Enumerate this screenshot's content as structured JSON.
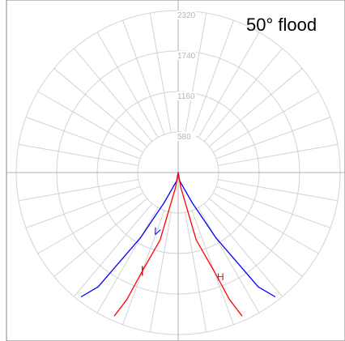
{
  "chart_data": {
    "type": "polar-line",
    "title": "50° flood",
    "rings": [
      580,
      1160,
      1740,
      2320
    ],
    "angle_step_deg": 10,
    "grid": true,
    "series": [
      {
        "name": "V",
        "color": "#0000ff",
        "points": [
          [
            0,
            0
          ],
          [
            5,
            0
          ],
          [
            10,
            120
          ],
          [
            20,
            240
          ],
          [
            25,
            480
          ],
          [
            30,
            1080
          ],
          [
            35,
            2000
          ],
          [
            38,
            2260
          ]
        ]
      },
      {
        "name": "H",
        "color": "#ff0000",
        "points": [
          [
            0,
            0
          ],
          [
            5,
            0
          ],
          [
            10,
            220
          ],
          [
            15,
            1000
          ],
          [
            20,
            1500
          ],
          [
            22,
            1960
          ],
          [
            24,
            2250
          ]
        ]
      }
    ],
    "series_labels": [
      "V",
      "H"
    ]
  },
  "colors": {
    "grid": "#d3d3d3",
    "axis": "#b0b0b0",
    "frame": "#808080",
    "curve_fill": "#ffffff"
  }
}
